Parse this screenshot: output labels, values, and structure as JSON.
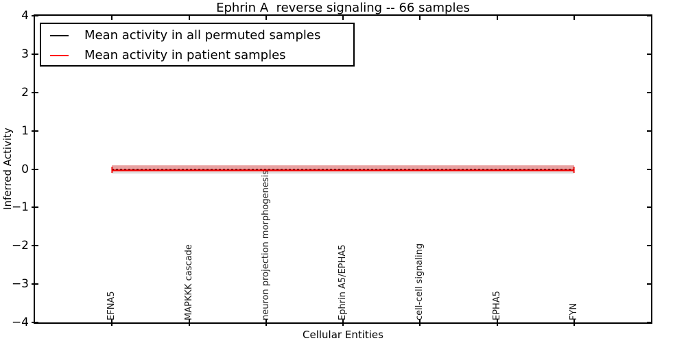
{
  "title": "Ephrin A  reverse signaling -- 66 samples",
  "legend": {
    "entries": [
      {
        "label": "Mean activity in all permuted samples",
        "color": "#000000"
      },
      {
        "label": "Mean activity in patient samples",
        "color": "#ff0000"
      }
    ]
  },
  "chart_data": {
    "type": "line",
    "title": "Ephrin A  reverse signaling -- 66 samples",
    "xlabel": "Cellular Entities",
    "ylabel": "Inferred Activity",
    "ylim": [
      -4,
      4
    ],
    "yticks": [
      4,
      3,
      2,
      1,
      0,
      -1,
      -2,
      -3,
      -4
    ],
    "ytick_labels": [
      "4",
      "3",
      "2",
      "1",
      "0",
      "−1",
      "−2",
      "−3",
      "−4"
    ],
    "grid": false,
    "legend_position": "upper left",
    "categories": [
      "EFNA5",
      "MAPKKK cascade",
      "neuron projection morphogenesis",
      "Ephrin A5/EPHA5",
      "cell-cell signaling",
      "EPHA5",
      "FYN"
    ],
    "series": [
      {
        "name": "Mean activity in all permuted samples",
        "color": "#000000",
        "style": "dotted",
        "values": [
          0.0,
          0.0,
          0.0,
          0.0,
          0.0,
          0.0,
          0.0
        ],
        "band": {
          "upper": 0.1,
          "lower": -0.11,
          "color": "#808080",
          "opacity": 0.25
        }
      },
      {
        "name": "Mean activity in patient samples",
        "color": "#ee0000",
        "style": "solid",
        "end_caps": true,
        "values": [
          -0.02,
          -0.02,
          -0.02,
          -0.02,
          -0.02,
          -0.02,
          -0.02
        ],
        "band": {
          "upper": 0.1,
          "lower": -0.08,
          "color": "#ff0000",
          "opacity": 0.28
        }
      }
    ]
  }
}
